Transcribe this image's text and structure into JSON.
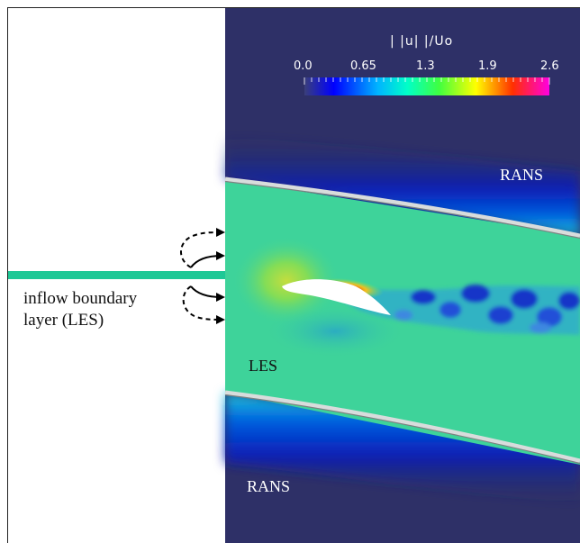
{
  "labels": {
    "rans_top": "RANS",
    "les": "LES",
    "rans_bottom": "RANS",
    "inflow_line1": "inflow boundary",
    "inflow_line2": "layer (LES)"
  },
  "colorbar": {
    "title": "| |u| |/Uo",
    "ticks": [
      "0.0",
      "0.65",
      "1.3",
      "1.9",
      "2.6"
    ]
  },
  "colors": {
    "background": "#2e3067",
    "les_field": "#3ed39a",
    "inflow_plate": "#1ec896",
    "wall": "#bfc3c3"
  }
}
